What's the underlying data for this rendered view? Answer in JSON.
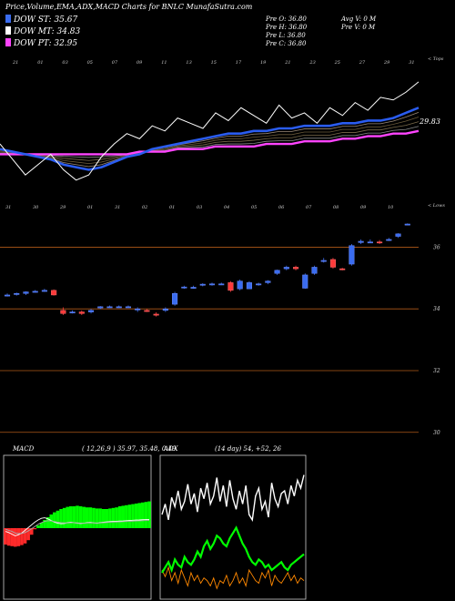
{
  "header": {
    "title": "Price,Volume,EMA,ADX,MACD Charts for BNLC MunafaSutra.com",
    "legend": [
      {
        "label": "DOW ST: 35.67",
        "color": "#3a6cf0"
      },
      {
        "label": "DOW MT: 34.83",
        "color": "#ffffff"
      },
      {
        "label": "DOW PT: 32.95",
        "color": "#ff44ff"
      }
    ],
    "ohlc": [
      "Pre  O: 36.80",
      "Pre  H: 36.80",
      "Pre  L: 36.80",
      "Pre  C: 36.80"
    ],
    "volume": [
      "Avg V: 0  M",
      "Pre  V: 0  M"
    ]
  },
  "colors": {
    "ema_fast": "#2a5cf0",
    "ema_slow": "#ff44ff",
    "up_candle": "#3a6cf0",
    "down_candle": "#ff3a3a",
    "gridline": "#b05a18",
    "adx_plus": "#ffffff",
    "adx_minus": "#ff8800",
    "adx_line": "#00ff00",
    "macd_up": "#00ff00",
    "macd_down": "#ff2a2a"
  },
  "chart_data": [
    {
      "type": "line",
      "name": "ema-panel",
      "top_label": "< Tops",
      "last_value_label": "29.83",
      "top_day_labels": [
        "21",
        "30",
        "01",
        "02",
        "03",
        "04",
        "05",
        "06",
        "07",
        "08",
        "09",
        "10",
        "11",
        "12",
        "13",
        "14",
        "15",
        "16",
        "17",
        "18",
        "19",
        "20",
        "21",
        "22",
        "23",
        "24",
        "25",
        "26",
        "27",
        "28",
        "29",
        "30",
        "31"
      ],
      "bottom_day_labels": [
        "31",
        "30",
        "29",
        "01",
        "31",
        "02",
        "01",
        "03",
        "04",
        "05",
        "06",
        "07",
        "08",
        "09",
        "10"
      ],
      "series": [
        {
          "values": [
            29.2,
            29.1,
            29.0,
            28.9,
            28.8,
            28.6,
            28.5,
            28.4,
            28.5,
            28.7,
            28.9,
            29.0,
            29.2,
            29.3,
            29.4,
            29.5,
            29.6,
            29.7,
            29.8,
            29.8,
            29.9,
            29.9,
            30.0,
            30.0,
            30.1,
            30.1,
            30.1,
            30.2,
            30.2,
            30.3,
            30.3,
            30.4,
            30.6,
            30.8
          ]
        },
        {
          "values": [
            29.0,
            29.0,
            29.0,
            29.0,
            29.0,
            29.0,
            29.0,
            29.0,
            29.0,
            29.0,
            29.0,
            29.1,
            29.1,
            29.1,
            29.2,
            29.2,
            29.2,
            29.3,
            29.3,
            29.3,
            29.3,
            29.4,
            29.4,
            29.4,
            29.5,
            29.5,
            29.5,
            29.6,
            29.6,
            29.7,
            29.7,
            29.8,
            29.8,
            29.9
          ]
        },
        {
          "values": [
            29.4,
            28.8,
            28.2,
            28.6,
            29.0,
            28.4,
            28.0,
            28.2,
            28.9,
            29.4,
            29.8,
            29.6,
            30.1,
            29.9,
            30.4,
            30.2,
            30.0,
            30.6,
            30.3,
            30.8,
            30.5,
            30.2,
            30.9,
            30.4,
            30.6,
            30.2,
            30.8,
            30.5,
            31.0,
            30.7,
            31.2,
            31.1,
            31.4,
            31.8
          ]
        }
      ]
    },
    {
      "type": "candlestick",
      "name": "price-panel",
      "top_label": "< Lows",
      "price_ticks": [
        "36",
        "34",
        "32",
        "30"
      ],
      "day_labels": [
        "31",
        "30",
        "29",
        "01",
        "31",
        "02",
        "01",
        "03",
        "04",
        "05",
        "06",
        "07",
        "08",
        "09",
        "10",
        "11",
        "12",
        "13",
        "14",
        "15",
        "16",
        "17",
        "18",
        "19",
        "20",
        "21",
        "22",
        "23",
        "24",
        "25",
        "26",
        "27",
        "28",
        "29",
        "30",
        "31",
        "01",
        "02"
      ],
      "candles": [
        {
          "o": 34.5,
          "h": 34.55,
          "l": 34.45,
          "c": 34.5
        },
        {
          "o": 34.52,
          "h": 34.58,
          "l": 34.48,
          "c": 34.55
        },
        {
          "o": 34.55,
          "h": 34.62,
          "l": 34.5,
          "c": 34.6
        },
        {
          "o": 34.62,
          "h": 34.66,
          "l": 34.58,
          "c": 34.62
        },
        {
          "o": 34.62,
          "h": 34.7,
          "l": 34.6,
          "c": 34.65
        },
        {
          "o": 34.65,
          "h": 34.68,
          "l": 34.48,
          "c": 34.5
        },
        {
          "o": 34.0,
          "h": 34.1,
          "l": 33.85,
          "c": 33.9
        },
        {
          "o": 33.95,
          "h": 34.0,
          "l": 33.9,
          "c": 33.95
        },
        {
          "o": 33.95,
          "h": 34.0,
          "l": 33.85,
          "c": 33.9
        },
        {
          "o": 33.95,
          "h": 34.05,
          "l": 33.9,
          "c": 34.0
        },
        {
          "o": 34.08,
          "h": 34.14,
          "l": 34.04,
          "c": 34.12
        },
        {
          "o": 34.12,
          "h": 34.16,
          "l": 34.08,
          "c": 34.12
        },
        {
          "o": 34.12,
          "h": 34.16,
          "l": 34.08,
          "c": 34.12
        },
        {
          "o": 34.12,
          "h": 34.16,
          "l": 34.08,
          "c": 34.12
        },
        {
          "o": 34.05,
          "h": 34.1,
          "l": 33.95,
          "c": 34.05
        },
        {
          "o": 34.0,
          "h": 34.05,
          "l": 33.95,
          "c": 33.98
        },
        {
          "o": 33.88,
          "h": 33.94,
          "l": 33.8,
          "c": 33.86
        },
        {
          "o": 34.0,
          "h": 34.1,
          "l": 33.95,
          "c": 34.05
        },
        {
          "o": 34.2,
          "h": 34.6,
          "l": 34.15,
          "c": 34.55
        },
        {
          "o": 34.74,
          "h": 34.8,
          "l": 34.7,
          "c": 34.76
        },
        {
          "o": 34.75,
          "h": 34.8,
          "l": 34.7,
          "c": 34.75
        },
        {
          "o": 34.82,
          "h": 34.88,
          "l": 34.78,
          "c": 34.85
        },
        {
          "o": 34.85,
          "h": 34.9,
          "l": 34.8,
          "c": 34.86
        },
        {
          "o": 34.86,
          "h": 34.9,
          "l": 34.82,
          "c": 34.86
        },
        {
          "o": 34.9,
          "h": 34.95,
          "l": 34.6,
          "c": 34.65
        },
        {
          "o": 34.7,
          "h": 35.0,
          "l": 34.65,
          "c": 34.95
        },
        {
          "o": 34.7,
          "h": 34.95,
          "l": 34.7,
          "c": 34.9
        },
        {
          "o": 34.85,
          "h": 34.9,
          "l": 34.8,
          "c": 34.86
        },
        {
          "o": 34.9,
          "h": 34.98,
          "l": 34.85,
          "c": 34.95
        },
        {
          "o": 35.2,
          "h": 35.32,
          "l": 35.15,
          "c": 35.3
        },
        {
          "o": 35.35,
          "h": 35.45,
          "l": 35.3,
          "c": 35.4
        },
        {
          "o": 35.4,
          "h": 35.45,
          "l": 35.3,
          "c": 35.35
        },
        {
          "o": 34.72,
          "h": 35.2,
          "l": 34.7,
          "c": 35.15
        },
        {
          "o": 35.2,
          "h": 35.45,
          "l": 35.15,
          "c": 35.4
        },
        {
          "o": 35.6,
          "h": 35.7,
          "l": 35.55,
          "c": 35.62
        },
        {
          "o": 35.65,
          "h": 35.7,
          "l": 35.35,
          "c": 35.4
        },
        {
          "o": 35.35,
          "h": 35.38,
          "l": 35.3,
          "c": 35.34
        },
        {
          "o": 35.5,
          "h": 36.15,
          "l": 35.45,
          "c": 36.1
        },
        {
          "o": 36.2,
          "h": 36.3,
          "l": 36.15,
          "c": 36.24
        },
        {
          "o": 36.22,
          "h": 36.3,
          "l": 36.18,
          "c": 36.22
        },
        {
          "o": 36.22,
          "h": 36.28,
          "l": 36.15,
          "c": 36.2
        },
        {
          "o": 36.3,
          "h": 36.35,
          "l": 36.25,
          "c": 36.3
        },
        {
          "o": 36.4,
          "h": 36.5,
          "l": 36.35,
          "c": 36.48
        },
        {
          "o": 36.8,
          "h": 36.82,
          "l": 36.78,
          "c": 36.8
        }
      ]
    },
    {
      "type": "bar",
      "name": "macd-panel",
      "label": "MACD",
      "params": "( 12,26,9 ) 35.97, 35.48, 0.49",
      "histogram": [
        -0.3,
        -0.32,
        -0.33,
        -0.34,
        -0.33,
        -0.31,
        -0.28,
        -0.22,
        -0.12,
        -0.02,
        0.05,
        0.1,
        0.15,
        0.2,
        0.25,
        0.29,
        0.32,
        0.35,
        0.37,
        0.39,
        0.4,
        0.4,
        0.41,
        0.4,
        0.39,
        0.38,
        0.38,
        0.37,
        0.36,
        0.36,
        0.35,
        0.35,
        0.36,
        0.37,
        0.38,
        0.4,
        0.41,
        0.42,
        0.43,
        0.44,
        0.45,
        0.46,
        0.47,
        0.48,
        0.49
      ],
      "series": [
        {
          "values": [
            -0.3,
            -0.4,
            -0.55,
            -0.7,
            -0.6,
            -0.45,
            -0.2,
            0.05,
            0.3,
            0.55,
            0.75,
            0.9,
            0.95,
            0.85,
            0.7,
            0.55,
            0.45,
            0.4,
            0.42,
            0.5,
            0.55,
            0.5,
            0.45,
            0.42,
            0.45,
            0.5,
            0.52,
            0.48,
            0.45,
            0.5,
            0.55,
            0.58,
            0.6,
            0.62,
            0.63,
            0.65,
            0.66,
            0.68,
            0.7,
            0.72,
            0.74,
            0.75,
            0.77,
            0.79,
            0.8
          ]
        },
        {
          "values": [
            -0.1,
            -0.2,
            -0.3,
            -0.45,
            -0.5,
            -0.48,
            -0.4,
            -0.25,
            -0.05,
            0.15,
            0.35,
            0.5,
            0.62,
            0.68,
            0.66,
            0.6,
            0.55,
            0.5,
            0.48,
            0.48,
            0.5,
            0.5,
            0.48,
            0.46,
            0.46,
            0.47,
            0.48,
            0.48,
            0.47,
            0.48,
            0.5,
            0.52,
            0.54,
            0.56,
            0.57,
            0.58,
            0.6,
            0.61,
            0.62,
            0.64,
            0.66,
            0.67,
            0.68,
            0.7,
            0.71
          ]
        }
      ]
    },
    {
      "type": "line",
      "name": "adx-panel",
      "label": "ADX",
      "params": "(14 day) 54,  +52,  26",
      "series": [
        {
          "values": [
            62,
            70,
            58,
            75,
            68,
            80,
            66,
            72,
            85,
            70,
            78,
            64,
            82,
            74,
            86,
            70,
            76,
            90,
            72,
            84,
            68,
            88,
            74,
            66,
            80,
            70,
            84,
            62,
            58,
            76,
            82,
            66,
            72,
            60,
            86,
            74,
            68,
            78,
            80,
            70,
            84,
            76,
            88,
            82,
            92
          ]
        },
        {
          "values": [
            20,
            15,
            22,
            12,
            18,
            10,
            20,
            14,
            8,
            18,
            12,
            16,
            10,
            14,
            12,
            8,
            14,
            6,
            12,
            10,
            16,
            8,
            12,
            18,
            10,
            14,
            8,
            20,
            16,
            12,
            10,
            18,
            14,
            20,
            8,
            16,
            12,
            10,
            14,
            18,
            12,
            16,
            10,
            14,
            12
          ]
        },
        {
          "values": [
            18,
            22,
            26,
            20,
            28,
            24,
            22,
            30,
            26,
            24,
            28,
            34,
            30,
            38,
            42,
            36,
            40,
            46,
            44,
            40,
            38,
            44,
            48,
            52,
            46,
            40,
            36,
            30,
            26,
            24,
            28,
            26,
            22,
            24,
            20,
            22,
            24,
            26,
            22,
            20,
            24,
            26,
            28,
            30,
            32
          ]
        }
      ]
    }
  ]
}
